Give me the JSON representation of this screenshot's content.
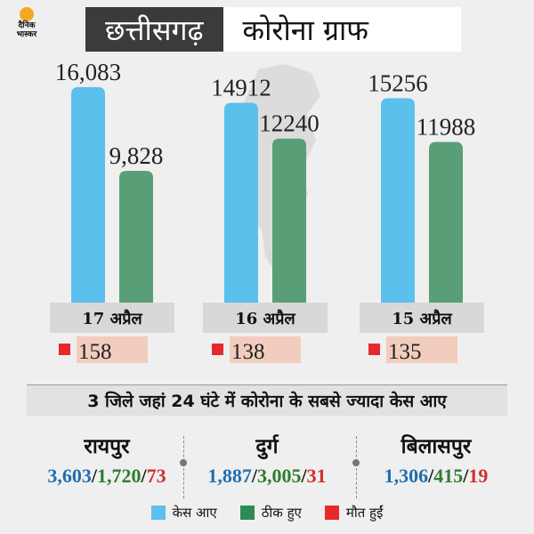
{
  "header": {
    "logo_text": "दैनिक भास्कर",
    "state": "छत्तीसगढ़",
    "topic": "कोरोना ग्राफ"
  },
  "colors": {
    "cases": "#5bc0eb",
    "recovered": "#5a9e77",
    "deaths": "#e8282b",
    "date_bg": "#d8d8d8",
    "death_bg": "#f2cdbd"
  },
  "chart_data": {
    "type": "bar",
    "categories": [
      "17 अप्रैल",
      "16 अप्रैल",
      "15 अप्रैल"
    ],
    "series": [
      {
        "name": "केस आए",
        "values": [
          16083,
          14912,
          15256
        ],
        "labels": [
          "16,083",
          "14912",
          "15256"
        ]
      },
      {
        "name": "ठीक हुए",
        "values": [
          9828,
          12240,
          11988
        ],
        "labels": [
          "9,828",
          "12240",
          "11988"
        ]
      }
    ],
    "deaths": [
      158,
      138,
      135
    ],
    "ylim": [
      0,
      17500
    ]
  },
  "section_title": "3 जिले जहां 24 घंटे में कोरोना के सबसे ज्यादा केस आए",
  "districts": [
    {
      "name": "रायपुर",
      "cases": "3,603",
      "recovered": "1,720",
      "deaths": "73"
    },
    {
      "name": "दुर्ग",
      "cases": "1,887",
      "recovered": "3,005",
      "deaths": "31"
    },
    {
      "name": "बिलासपुर",
      "cases": "1,306",
      "recovered": "415",
      "deaths": "19"
    }
  ],
  "legend": {
    "cases": "केस आए",
    "recovered": "ठीक हुए",
    "deaths": "मौत हुईं"
  }
}
